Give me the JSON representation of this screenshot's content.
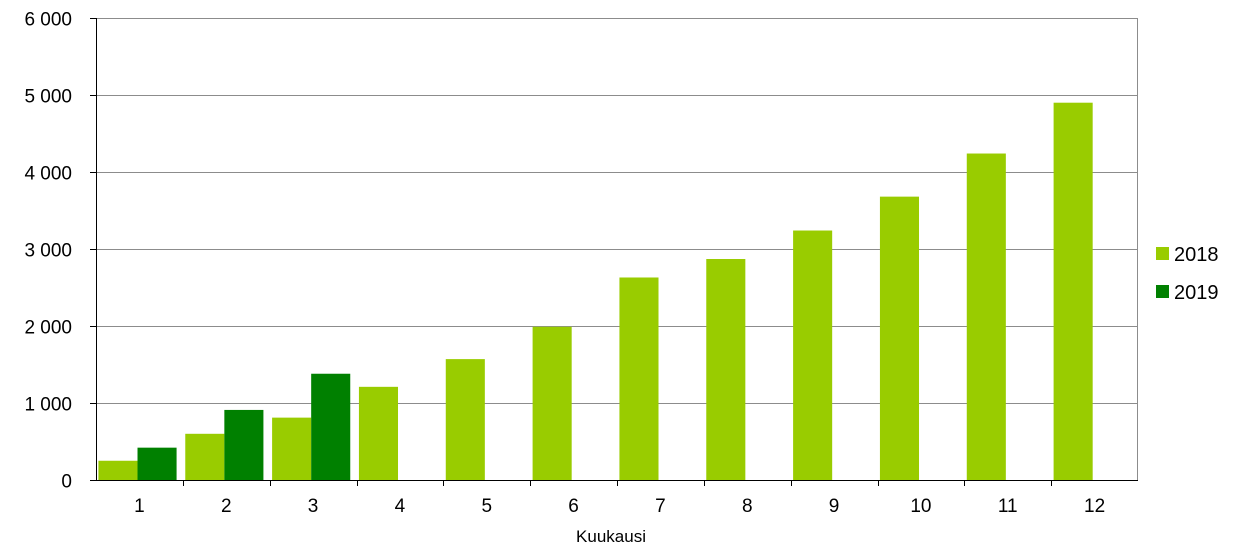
{
  "chart_data": {
    "type": "bar",
    "title": "",
    "xlabel": "Kuukausi",
    "ylabel": "",
    "ylim": [
      0,
      6000
    ],
    "yticks": [
      0,
      1000,
      2000,
      3000,
      4000,
      5000,
      6000
    ],
    "ytick_labels": [
      "0",
      "1 000",
      "2 000",
      "3 000",
      "4 000",
      "5 000",
      "6 000"
    ],
    "categories": [
      "1",
      "2",
      "3",
      "4",
      "5",
      "6",
      "7",
      "8",
      "9",
      "10",
      "11",
      "12"
    ],
    "series": [
      {
        "name": "2018",
        "color": "#99cc00",
        "values": [
          250,
          600,
          810,
          1210,
          1570,
          1990,
          2630,
          2870,
          3240,
          3680,
          4240,
          4900
        ]
      },
      {
        "name": "2019",
        "color": "#008000",
        "values": [
          420,
          910,
          1380,
          null,
          null,
          null,
          null,
          null,
          null,
          null,
          null,
          null
        ]
      }
    ],
    "grid": true,
    "legend_position": "right"
  }
}
